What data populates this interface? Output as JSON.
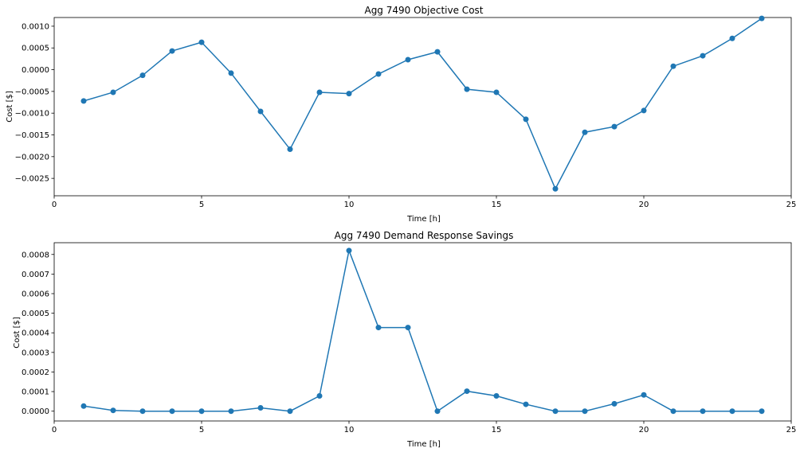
{
  "chart_data": [
    {
      "type": "line",
      "title": "Agg 7490 Objective Cost",
      "xlabel": "Time [h]",
      "ylabel": "Cost [$]",
      "xlim": [
        0,
        25
      ],
      "ylim": [
        -0.0029,
        0.0012
      ],
      "xticks": [
        0,
        5,
        10,
        15,
        20,
        25
      ],
      "xtick_labels": [
        "0",
        "5",
        "10",
        "15",
        "20",
        "25"
      ],
      "yticks": [
        0.001,
        0.0005,
        0,
        -0.0005,
        -0.001,
        -0.0015,
        -0.002,
        -0.0025
      ],
      "ytick_labels": [
        "0.0010",
        "0.0005",
        "0.0000",
        "−0.0005",
        "−0.0010",
        "−0.0015",
        "−0.0020",
        "−0.0025"
      ],
      "grid": false,
      "color": "#1f77b4",
      "marker": "circle",
      "x": [
        1,
        2,
        3,
        4,
        5,
        6,
        7,
        8,
        9,
        10,
        11,
        12,
        13,
        14,
        15,
        16,
        17,
        18,
        19,
        20,
        21,
        22,
        23,
        24
      ],
      "values": [
        -0.00072,
        -0.00052,
        -0.00013,
        0.00043,
        0.00063,
        -8e-05,
        -0.00096,
        -0.00183,
        -0.00052,
        -0.00055,
        -0.0001,
        0.00023,
        0.00041,
        -0.00045,
        -0.00052,
        -0.00114,
        -0.00274,
        -0.00144,
        -0.00131,
        -0.00094,
        8e-05,
        0.00032,
        0.00072,
        0.00118
      ]
    },
    {
      "type": "line",
      "title": "Agg 7490 Demand Response Savings",
      "xlabel": "Time [h]",
      "ylabel": "Cost [$]",
      "xlim": [
        0,
        25
      ],
      "ylim": [
        -5e-05,
        0.00086
      ],
      "xticks": [
        0,
        5,
        10,
        15,
        20,
        25
      ],
      "xtick_labels": [
        "0",
        "5",
        "10",
        "15",
        "20",
        "25"
      ],
      "yticks": [
        0.0008,
        0.0007,
        0.0006,
        0.0005,
        0.0004,
        0.0003,
        0.0002,
        0.0001,
        0
      ],
      "ytick_labels": [
        "0.0008",
        "0.0007",
        "0.0006",
        "0.0005",
        "0.0004",
        "0.0003",
        "0.0002",
        "0.0001",
        "0.0000"
      ],
      "grid": false,
      "color": "#1f77b4",
      "marker": "circle",
      "x": [
        1,
        2,
        3,
        4,
        5,
        6,
        7,
        8,
        9,
        10,
        11,
        12,
        13,
        14,
        15,
        16,
        17,
        18,
        19,
        20,
        21,
        22,
        23,
        24
      ],
      "values": [
        2.6e-05,
        4e-06,
        0,
        0,
        0,
        0,
        1.7e-05,
        0,
        7.8e-05,
        0.00082,
        0.000427,
        0.000427,
        0,
        0.000102,
        7.8e-05,
        3.5e-05,
        0,
        0,
        3.8e-05,
        8.3e-05,
        0,
        0,
        0,
        0
      ]
    }
  ]
}
